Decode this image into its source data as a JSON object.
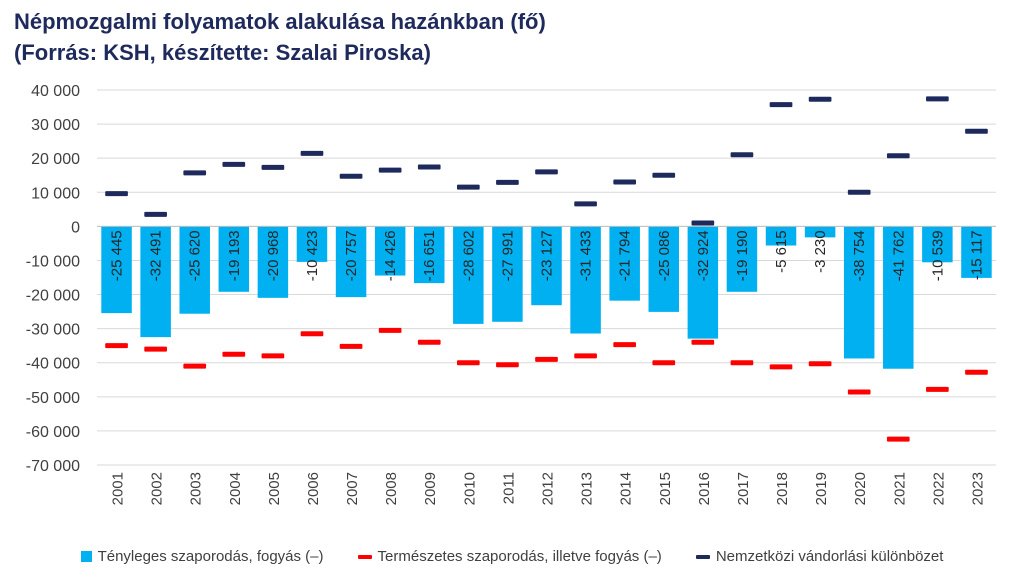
{
  "title_line1": "Népmozgalmi folyamatok alakulása hazánkban (fő)",
  "title_line2": "(Forrás: KSH, készítette: Szalai Piroska)",
  "chart_data": {
    "type": "bar",
    "x": [
      "2001",
      "2002",
      "2003",
      "2004",
      "2005",
      "2006",
      "2007",
      "2008",
      "2009",
      "2010",
      "2011",
      "2012",
      "2013",
      "2014",
      "2015",
      "2016",
      "2017",
      "2018",
      "2019",
      "2020",
      "2021",
      "2022",
      "2023"
    ],
    "ylim": [
      -70000,
      40000
    ],
    "yticks": [
      40000,
      30000,
      20000,
      10000,
      0,
      -10000,
      -20000,
      -30000,
      -40000,
      -50000,
      -60000,
      -70000
    ],
    "ytick_labels": [
      "40 000",
      "30 000",
      "20 000",
      "10 000",
      "0",
      "-10 000",
      "-20 000",
      "-30 000",
      "-40 000",
      "-50 000",
      "-60 000",
      "-70 000"
    ],
    "grid": true,
    "legend_position": "bottom",
    "series": [
      {
        "name": "Tényleges szaporodás, fogyás (–)",
        "kind": "bar",
        "color": "#00b0f0",
        "values": [
          -25445,
          -32491,
          -25620,
          -19193,
          -20968,
          -10423,
          -20757,
          -14426,
          -16651,
          -28602,
          -27991,
          -23127,
          -31433,
          -21794,
          -25086,
          -32924,
          -19190,
          -5615,
          -3230,
          -38754,
          -41762,
          -10539,
          -15117
        ],
        "labels": [
          "-25 445",
          "-32 491",
          "-25 620",
          "-19 193",
          "-20 968",
          "-10 423",
          "-20 757",
          "-14 426",
          "-16 651",
          "-28 602",
          "-27 991",
          "-23 127",
          "-31 433",
          "-21 794",
          "-25 086",
          "-32 924",
          "-19 190",
          "-5 615",
          "-3 230",
          "-38 754",
          "-41 762",
          "-10 539",
          "-15 117"
        ]
      },
      {
        "name": "Természetes szaporodás, illetve fogyás (–)",
        "kind": "marker",
        "color": "#ff0000",
        "values": [
          -35000,
          -36000,
          -41000,
          -37500,
          -38000,
          -31500,
          -35200,
          -30500,
          -34000,
          -40000,
          -40600,
          -39000,
          -38000,
          -34700,
          -40000,
          -34000,
          -40000,
          -41200,
          -40300,
          -48600,
          -62400,
          -47800,
          -42800
        ]
      },
      {
        "name": "Nemzetközi vándorlási különbözet",
        "kind": "marker",
        "color": "#1f2a5c",
        "values": [
          9600,
          3500,
          15700,
          18200,
          17300,
          21400,
          14700,
          16500,
          17400,
          11500,
          12900,
          16000,
          6600,
          13000,
          15000,
          1000,
          21000,
          35700,
          37300,
          10000,
          20700,
          37400,
          27900
        ]
      }
    ]
  }
}
